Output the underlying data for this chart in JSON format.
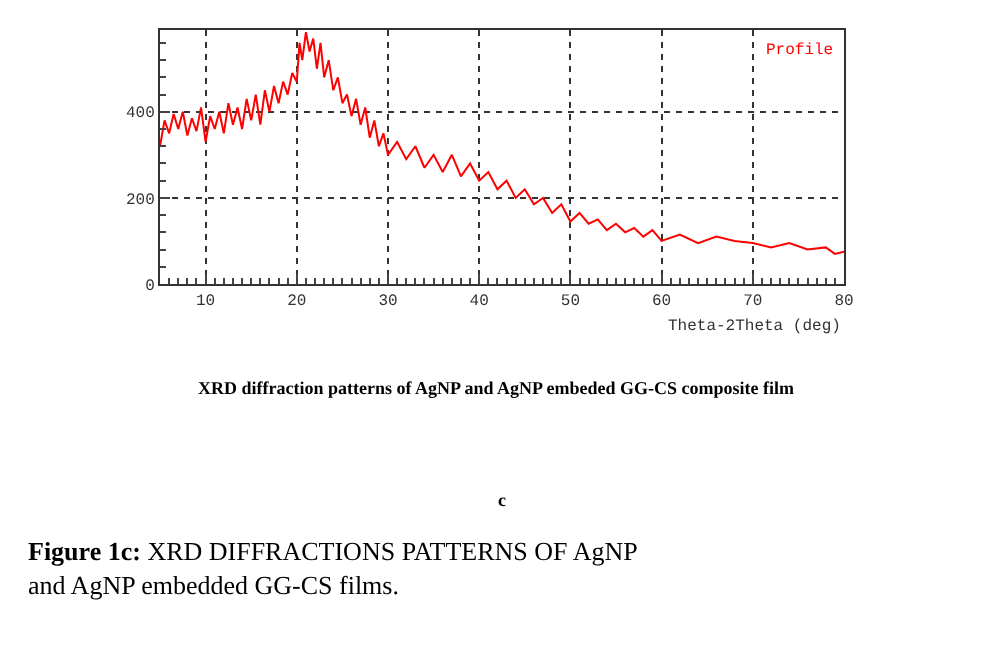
{
  "chart_data": {
    "type": "line",
    "title": "XRD diffraction patterns of AgNP and AgNP embeded GG-CS composite film",
    "xlabel": "Theta-2Theta (deg)",
    "annotations": [
      "c",
      "Figure 1c: XRD DIFFRACTIONS PATTERNS OF AgNP and AgNP embedded GG-CS films."
    ],
    "x": [
      5,
      5.5,
      6,
      6.5,
      7,
      7.5,
      8,
      8.5,
      9,
      9.5,
      10,
      10.5,
      11,
      11.5,
      12,
      12.5,
      13,
      13.5,
      14,
      14.5,
      15,
      15.5,
      16,
      16.5,
      17,
      17.5,
      18,
      18.5,
      19,
      19.5,
      20,
      20.3,
      20.6,
      21,
      21.4,
      21.8,
      22.2,
      22.6,
      23,
      23.5,
      24,
      24.5,
      25,
      25.5,
      26,
      26.5,
      27,
      27.5,
      28,
      28.5,
      29,
      29.5,
      30,
      31,
      32,
      33,
      34,
      35,
      36,
      37,
      38,
      39,
      40,
      41,
      42,
      43,
      44,
      45,
      46,
      47,
      48,
      49,
      50,
      51,
      52,
      53,
      54,
      55,
      56,
      57,
      58,
      59,
      60,
      62,
      64,
      66,
      68,
      70,
      72,
      74,
      76,
      78,
      79,
      80
    ],
    "series": [
      {
        "name": "Profile",
        "color": "#ff0000",
        "values": [
          320,
          380,
          350,
          395,
          360,
          400,
          345,
          385,
          355,
          410,
          330,
          390,
          360,
          400,
          350,
          420,
          370,
          410,
          360,
          430,
          380,
          440,
          370,
          450,
          400,
          460,
          420,
          470,
          440,
          490,
          470,
          560,
          520,
          585,
          540,
          570,
          500,
          560,
          480,
          520,
          450,
          480,
          420,
          440,
          390,
          430,
          370,
          410,
          340,
          380,
          320,
          350,
          300,
          330,
          290,
          320,
          270,
          300,
          260,
          300,
          250,
          280,
          240,
          260,
          220,
          240,
          200,
          220,
          185,
          200,
          165,
          185,
          145,
          165,
          140,
          150,
          125,
          140,
          120,
          130,
          110,
          125,
          100,
          115,
          95,
          110,
          100,
          95,
          85,
          95,
          80,
          85,
          70,
          75
        ]
      }
    ],
    "xlim": [
      5,
      80
    ],
    "ylim": [
      0,
      590
    ],
    "xticks": [
      10,
      20,
      30,
      40,
      50,
      60,
      70,
      80
    ],
    "yticks": [
      0,
      200,
      400
    ],
    "grid": true,
    "line_style": "solid",
    "marker": "none"
  }
}
